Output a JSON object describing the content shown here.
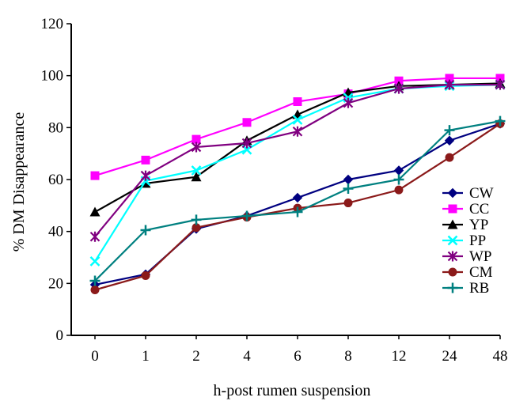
{
  "chart_data": {
    "type": "line",
    "title": "",
    "xlabel": "h-post rumen suspension",
    "ylabel": "% DM Disappearance",
    "categories": [
      "0",
      "1",
      "2",
      "4",
      "6",
      "8",
      "12",
      "24",
      "48"
    ],
    "yticks": [
      0,
      20,
      40,
      60,
      80,
      100,
      120
    ],
    "ylim": [
      0,
      120
    ],
    "grid": false,
    "legend_position": "right",
    "series": [
      {
        "name": "CW",
        "color": "#000080",
        "marker": "diamond",
        "values": [
          19.5,
          23.5,
          41.0,
          46.0,
          53.0,
          60.0,
          63.5,
          75.0,
          81.5
        ]
      },
      {
        "name": "CC",
        "color": "#ff00ff",
        "marker": "square",
        "values": [
          61.5,
          67.5,
          75.5,
          82.0,
          90.0,
          93.0,
          98.0,
          99.0,
          99.0
        ]
      },
      {
        "name": "YP",
        "color": "#000000",
        "marker": "triangle",
        "values": [
          47.5,
          58.5,
          61.0,
          75.0,
          85.0,
          93.5,
          96.0,
          96.5,
          97.0
        ]
      },
      {
        "name": "PP",
        "color": "#00ffff",
        "marker": "x",
        "values": [
          28.5,
          59.5,
          63.5,
          71.5,
          83.0,
          91.5,
          95.0,
          96.0,
          96.5
        ]
      },
      {
        "name": "WP",
        "color": "#800080",
        "marker": "star",
        "values": [
          38.0,
          61.5,
          72.5,
          74.0,
          78.5,
          89.5,
          95.0,
          96.5,
          96.5
        ]
      },
      {
        "name": "CM",
        "color": "#8b1a1a",
        "marker": "circle",
        "values": [
          17.5,
          23.0,
          41.5,
          45.5,
          49.0,
          51.0,
          56.0,
          68.5,
          81.5
        ]
      },
      {
        "name": "RB",
        "color": "#008080",
        "marker": "plus",
        "values": [
          21.0,
          40.5,
          44.5,
          46.0,
          47.5,
          56.5,
          60.0,
          79.0,
          82.5
        ]
      }
    ]
  }
}
